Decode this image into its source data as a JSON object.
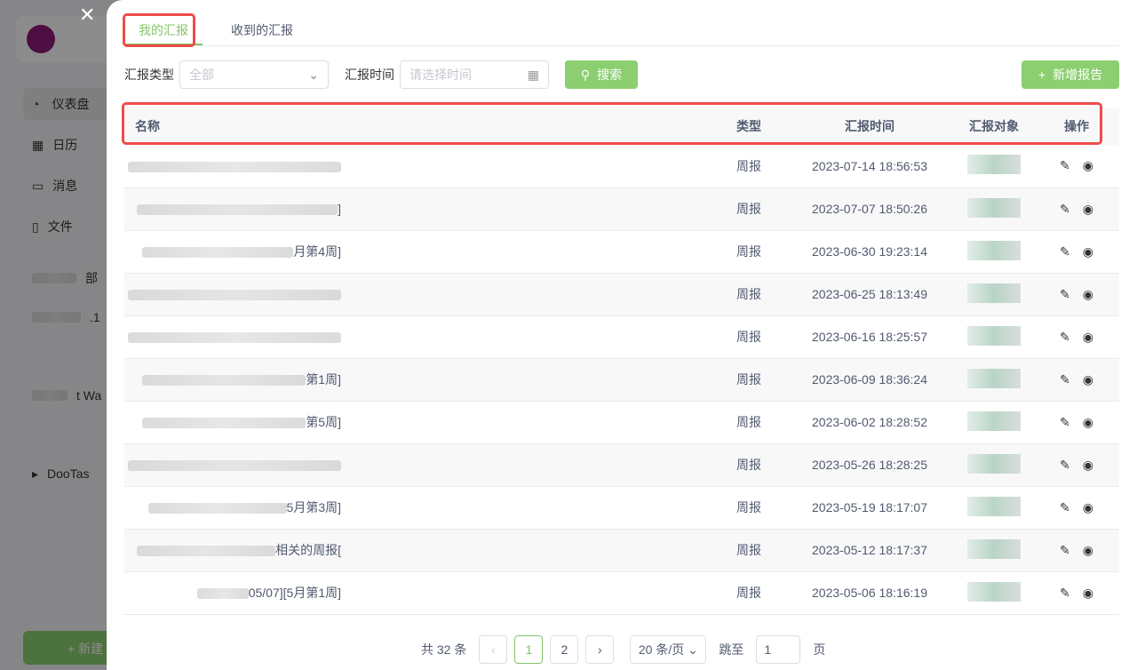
{
  "sidebar": {
    "items": [
      "仪表盘",
      "日历",
      "消息",
      "文件"
    ],
    "projects": [
      "部",
      ".1",
      "t Wa",
      "DooTas"
    ],
    "new_label": "+ 新建"
  },
  "tabs": [
    "我的汇报",
    "收到的汇报"
  ],
  "filters": {
    "type_label": "汇报类型",
    "type_value": "全部",
    "time_label": "汇报时间",
    "time_placeholder": "请选择时间",
    "search": "搜索",
    "add": "新增报告"
  },
  "table": {
    "headers": [
      "名称",
      "类型",
      "汇报时间",
      "汇报对象",
      "操作"
    ],
    "rows": [
      {
        "name": "",
        "type": "周报",
        "time": "2023-07-14 18:56:53"
      },
      {
        "name": "]",
        "type": "周报",
        "time": "2023-07-07 18:50:26"
      },
      {
        "name": "月第4周]",
        "type": "周报",
        "time": "2023-06-30 19:23:14"
      },
      {
        "name": "",
        "type": "周报",
        "time": "2023-06-25 18:13:49"
      },
      {
        "name": "",
        "type": "周报",
        "time": "2023-06-16 18:25:57"
      },
      {
        "name": "第1周]",
        "type": "周报",
        "time": "2023-06-09 18:36:24"
      },
      {
        "name": "第5周]",
        "type": "周报",
        "time": "2023-06-02 18:28:52"
      },
      {
        "name": "",
        "type": "周报",
        "time": "2023-05-26 18:28:25"
      },
      {
        "name": "5月第3周]",
        "type": "周报",
        "time": "2023-05-19 18:17:07"
      },
      {
        "name": "相关的周报[",
        "type": "周报",
        "time": "2023-05-12 18:17:37"
      },
      {
        "name": "05/07][5月第1周]",
        "type": "周报",
        "time": "2023-05-06 18:16:19"
      }
    ]
  },
  "pagination": {
    "total": "共 32 条",
    "pages": [
      "1",
      "2"
    ],
    "current": 1,
    "page_size": "20 条/页",
    "jump_label": "跳至",
    "jump_value": "1",
    "page_unit": "页"
  },
  "colors": {
    "accent": "#84c56a",
    "highlight": "#ef4b4b"
  }
}
